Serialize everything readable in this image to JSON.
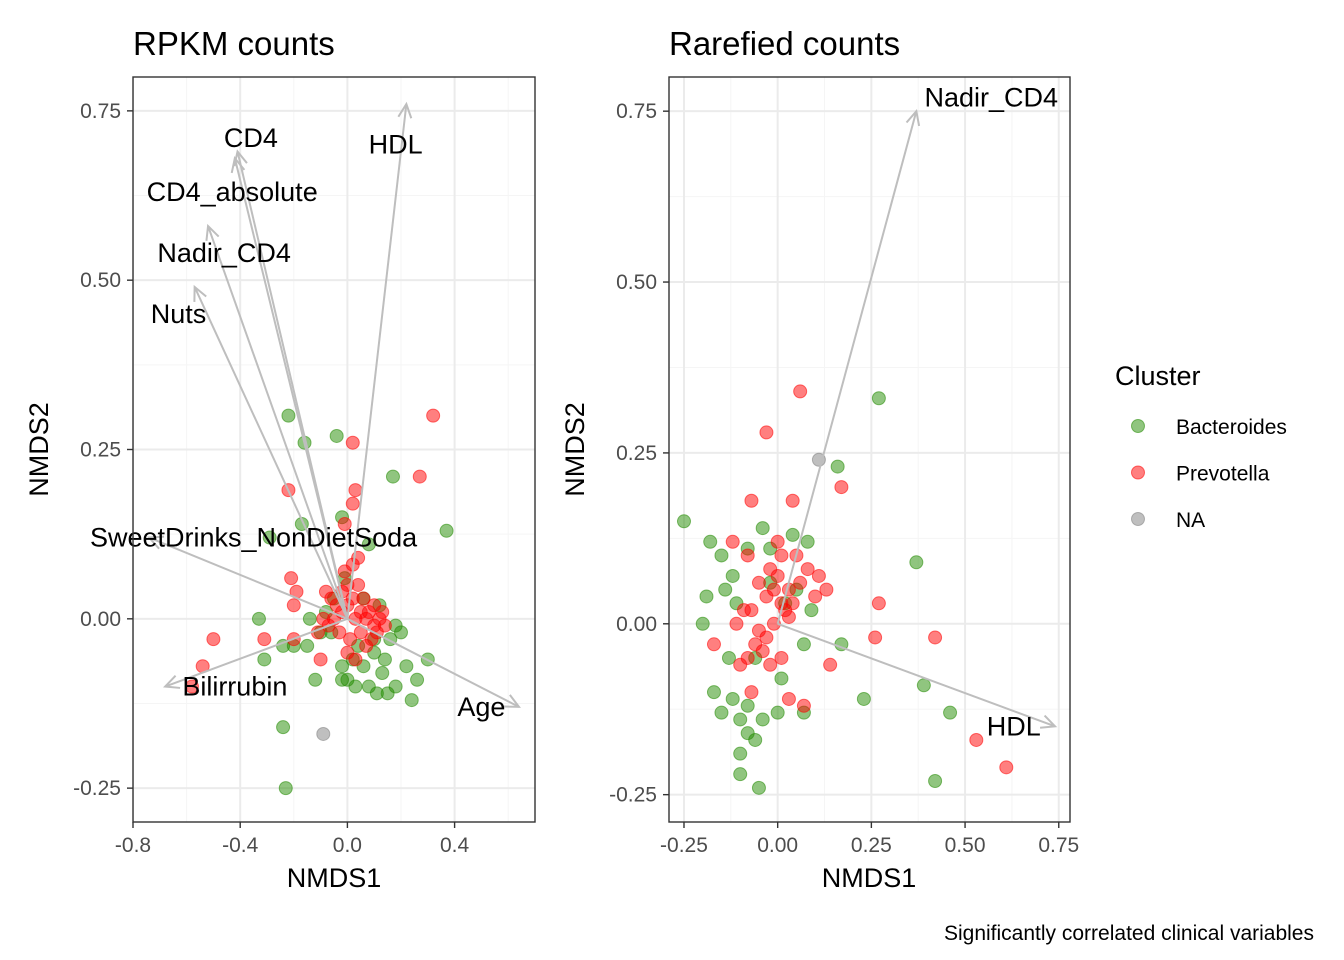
{
  "chart_data": [
    {
      "type": "scatter",
      "title": "RPKM counts",
      "xlabel": "NMDS1",
      "ylabel": "NMDS2",
      "xlim": [
        -0.8,
        0.7
      ],
      "ylim": [
        -0.3,
        0.8
      ],
      "xticks": [
        -0.8,
        -0.4,
        0.0,
        0.4
      ],
      "xtick_labels": [
        "-0.8",
        "-0.4",
        "0.0",
        "0.4"
      ],
      "yticks": [
        -0.25,
        0.0,
        0.25,
        0.5,
        0.75
      ],
      "ytick_labels": [
        "-0.25",
        "0.00",
        "0.25",
        "0.50",
        "0.75"
      ],
      "grid": true,
      "origin": [
        0,
        0
      ],
      "vectors": [
        {
          "label": "HDL",
          "x": 0.22,
          "y": 0.76,
          "label_x": 0.18,
          "label_y": 0.7
        },
        {
          "label": "CD4",
          "x": -0.41,
          "y": 0.69,
          "label_x": -0.36,
          "label_y": 0.71
        },
        {
          "label": "CD4_absolute",
          "x": -0.42,
          "y": 0.68,
          "label_x": -0.43,
          "label_y": 0.63
        },
        {
          "label": "Nadir_CD4",
          "x": -0.52,
          "y": 0.58,
          "label_x": -0.46,
          "label_y": 0.54
        },
        {
          "label": "Nuts",
          "x": -0.57,
          "y": 0.49,
          "label_x": -0.63,
          "label_y": 0.45
        },
        {
          "label": "SweetDrinks_NonDietSoda",
          "x": -0.74,
          "y": 0.12,
          "label_x": -0.35,
          "label_y": 0.12
        },
        {
          "label": "Bilirrubin",
          "x": -0.68,
          "y": -0.1,
          "label_x": -0.42,
          "label_y": -0.1
        },
        {
          "label": "Age",
          "x": 0.64,
          "y": -0.13,
          "label_x": 0.5,
          "label_y": -0.13
        }
      ],
      "series": [
        {
          "name": "Bacteroides",
          "points": [
            [
              -0.22,
              0.3
            ],
            [
              -0.16,
              0.26
            ],
            [
              -0.04,
              0.27
            ],
            [
              -0.17,
              0.14
            ],
            [
              -0.29,
              0.12
            ],
            [
              0.17,
              0.21
            ],
            [
              0.08,
              0.11
            ],
            [
              0.37,
              0.13
            ],
            [
              -0.02,
              0.15
            ],
            [
              -0.33,
              0.0
            ],
            [
              -0.31,
              -0.06
            ],
            [
              -0.24,
              -0.04
            ],
            [
              -0.2,
              -0.04
            ],
            [
              -0.15,
              -0.04
            ],
            [
              -0.1,
              -0.02
            ],
            [
              -0.12,
              -0.09
            ],
            [
              -0.24,
              -0.16
            ],
            [
              -0.23,
              -0.25
            ],
            [
              -0.06,
              -0.02
            ],
            [
              -0.02,
              -0.07
            ],
            [
              0.0,
              -0.09
            ],
            [
              0.03,
              -0.1
            ],
            [
              0.06,
              -0.07
            ],
            [
              0.08,
              -0.1
            ],
            [
              0.11,
              -0.11
            ],
            [
              0.13,
              -0.08
            ],
            [
              0.15,
              -0.11
            ],
            [
              0.18,
              -0.1
            ],
            [
              0.22,
              -0.07
            ],
            [
              0.26,
              -0.09
            ],
            [
              0.3,
              -0.06
            ],
            [
              0.2,
              -0.02
            ],
            [
              0.24,
              -0.12
            ],
            [
              0.14,
              -0.06
            ],
            [
              0.1,
              -0.05
            ],
            [
              -0.08,
              0.01
            ],
            [
              -0.05,
              0.03
            ],
            [
              0.04,
              -0.04
            ],
            [
              -0.14,
              0.0
            ],
            [
              -0.02,
              -0.09
            ],
            [
              0.1,
              -0.03
            ],
            [
              0.18,
              -0.01
            ],
            [
              0.12,
              0.02
            ],
            [
              0.06,
              0.03
            ],
            [
              0.02,
              -0.06
            ],
            [
              -0.01,
              0.06
            ],
            [
              0.16,
              -0.03
            ]
          ]
        },
        {
          "name": "Prevotella",
          "points": [
            [
              0.32,
              0.3
            ],
            [
              0.02,
              0.26
            ],
            [
              0.27,
              0.21
            ],
            [
              -0.22,
              0.19
            ],
            [
              0.03,
              0.19
            ],
            [
              0.02,
              0.17
            ],
            [
              -0.01,
              0.14
            ],
            [
              0.04,
              0.09
            ],
            [
              -0.21,
              0.06
            ],
            [
              -0.19,
              0.04
            ],
            [
              -0.2,
              0.02
            ],
            [
              -0.08,
              0.04
            ],
            [
              -0.06,
              0.03
            ],
            [
              -0.04,
              0.02
            ],
            [
              -0.02,
              0.04
            ],
            [
              0.0,
              0.02
            ],
            [
              0.02,
              0.03
            ],
            [
              0.04,
              0.05
            ],
            [
              0.06,
              0.03
            ],
            [
              0.08,
              0.01
            ],
            [
              0.1,
              0.02
            ],
            [
              0.12,
              0.0
            ],
            [
              0.14,
              -0.01
            ],
            [
              0.05,
              -0.02
            ],
            [
              0.03,
              0.0
            ],
            [
              0.01,
              -0.03
            ],
            [
              -0.03,
              -0.02
            ],
            [
              -0.05,
              0.0
            ],
            [
              -0.07,
              -0.01
            ],
            [
              -0.09,
              0.0
            ],
            [
              -0.11,
              -0.02
            ],
            [
              0.07,
              -0.04
            ],
            [
              0.09,
              -0.03
            ],
            [
              0.11,
              -0.02
            ],
            [
              -0.01,
              0.07
            ],
            [
              0.0,
              0.05
            ],
            [
              0.02,
              0.08
            ],
            [
              -0.5,
              -0.03
            ],
            [
              -0.54,
              -0.07
            ],
            [
              -0.58,
              -0.1
            ],
            [
              -0.31,
              -0.03
            ],
            [
              -0.2,
              -0.03
            ],
            [
              -0.1,
              -0.06
            ],
            [
              0.0,
              -0.05
            ],
            [
              0.03,
              -0.06
            ],
            [
              0.05,
              0.01
            ],
            [
              0.07,
              0.0
            ],
            [
              0.1,
              -0.01
            ],
            [
              0.13,
              0.01
            ],
            [
              -0.02,
              0.01
            ]
          ]
        },
        {
          "name": "NA",
          "points": [
            [
              -0.09,
              -0.17
            ]
          ]
        }
      ]
    },
    {
      "type": "scatter",
      "title": "Rarefied counts",
      "xlabel": "NMDS1",
      "ylabel": "NMDS2",
      "xlim": [
        -0.29,
        0.78
      ],
      "ylim": [
        -0.29,
        0.8
      ],
      "xticks": [
        -0.25,
        0.0,
        0.25,
        0.5,
        0.75
      ],
      "xtick_labels": [
        "-0.25",
        "0.00",
        "0.25",
        "0.50",
        "0.75"
      ],
      "yticks": [
        -0.25,
        0.0,
        0.25,
        0.5,
        0.75
      ],
      "ytick_labels": [
        "-0.25",
        "0.00",
        "0.25",
        "0.50",
        "0.75"
      ],
      "grid": true,
      "origin": [
        0,
        0
      ],
      "vectors": [
        {
          "label": "Nadir_CD4",
          "x": 0.37,
          "y": 0.75,
          "label_x": 0.57,
          "label_y": 0.77
        },
        {
          "label": "HDL",
          "x": 0.74,
          "y": -0.15,
          "label_x": 0.63,
          "label_y": -0.15
        }
      ],
      "series": [
        {
          "name": "Bacteroides",
          "points": [
            [
              0.27,
              0.33
            ],
            [
              0.16,
              0.23
            ],
            [
              -0.25,
              0.15
            ],
            [
              -0.18,
              0.12
            ],
            [
              -0.15,
              0.1
            ],
            [
              -0.12,
              0.07
            ],
            [
              -0.08,
              0.11
            ],
            [
              -0.04,
              0.14
            ],
            [
              -0.02,
              0.11
            ],
            [
              0.04,
              0.13
            ],
            [
              0.08,
              0.12
            ],
            [
              0.37,
              0.09
            ],
            [
              -0.19,
              0.04
            ],
            [
              -0.14,
              0.05
            ],
            [
              -0.11,
              0.03
            ],
            [
              -0.2,
              0.0
            ],
            [
              -0.17,
              -0.1
            ],
            [
              -0.15,
              -0.13
            ],
            [
              -0.12,
              -0.11
            ],
            [
              -0.1,
              -0.14
            ],
            [
              -0.08,
              -0.16
            ],
            [
              -0.06,
              -0.17
            ],
            [
              -0.04,
              -0.14
            ],
            [
              -0.1,
              -0.19
            ],
            [
              -0.1,
              -0.22
            ],
            [
              -0.05,
              -0.24
            ],
            [
              0.0,
              -0.13
            ],
            [
              0.07,
              -0.13
            ],
            [
              0.17,
              -0.03
            ],
            [
              0.23,
              -0.11
            ],
            [
              0.39,
              -0.09
            ],
            [
              0.46,
              -0.13
            ],
            [
              0.42,
              -0.23
            ],
            [
              0.07,
              -0.03
            ],
            [
              0.02,
              0.03
            ],
            [
              -0.02,
              0.06
            ],
            [
              0.09,
              0.02
            ],
            [
              -0.06,
              -0.05
            ],
            [
              0.05,
              0.05
            ],
            [
              -0.13,
              -0.05
            ],
            [
              -0.08,
              -0.12
            ],
            [
              0.01,
              -0.08
            ]
          ]
        },
        {
          "name": "Prevotella",
          "points": [
            [
              0.06,
              0.34
            ],
            [
              -0.03,
              0.28
            ],
            [
              -0.07,
              0.18
            ],
            [
              0.04,
              0.18
            ],
            [
              0.17,
              0.2
            ],
            [
              -0.12,
              0.12
            ],
            [
              -0.08,
              0.1
            ],
            [
              0.01,
              0.1
            ],
            [
              0.05,
              0.1
            ],
            [
              0.08,
              0.08
            ],
            [
              0.11,
              0.07
            ],
            [
              0.13,
              0.05
            ],
            [
              0.06,
              0.06
            ],
            [
              0.03,
              0.05
            ],
            [
              0.01,
              0.03
            ],
            [
              -0.03,
              0.04
            ],
            [
              -0.05,
              0.06
            ],
            [
              -0.07,
              0.02
            ],
            [
              -0.09,
              0.02
            ],
            [
              -0.11,
              0.0
            ],
            [
              -0.05,
              -0.01
            ],
            [
              -0.03,
              -0.02
            ],
            [
              -0.01,
              0.0
            ],
            [
              0.02,
              0.02
            ],
            [
              0.04,
              0.03
            ],
            [
              0.0,
              0.07
            ],
            [
              -0.02,
              0.08
            ],
            [
              -0.04,
              -0.04
            ],
            [
              -0.06,
              -0.03
            ],
            [
              -0.08,
              -0.05
            ],
            [
              -0.1,
              -0.06
            ],
            [
              -0.02,
              -0.06
            ],
            [
              0.01,
              -0.05
            ],
            [
              0.14,
              -0.06
            ],
            [
              0.27,
              0.03
            ],
            [
              0.26,
              -0.02
            ],
            [
              0.42,
              -0.02
            ],
            [
              0.53,
              -0.17
            ],
            [
              0.61,
              -0.21
            ],
            [
              -0.17,
              -0.03
            ],
            [
              0.03,
              -0.11
            ],
            [
              0.07,
              -0.12
            ],
            [
              -0.07,
              -0.1
            ],
            [
              0.0,
              0.12
            ],
            [
              0.1,
              0.04
            ],
            [
              -0.01,
              0.05
            ],
            [
              0.03,
              0.01
            ]
          ]
        },
        {
          "name": "NA",
          "points": [
            [
              0.11,
              0.24
            ]
          ]
        }
      ]
    }
  ],
  "legend": {
    "title": "Cluster",
    "position": "right",
    "items": [
      {
        "label": "Bacteroides",
        "color": "#228B00"
      },
      {
        "label": "Prevotella",
        "color": "#FF0000"
      },
      {
        "label": "NA",
        "color": "#808080"
      }
    ]
  },
  "caption": "Significantly correlated clinical variables",
  "colors": {
    "Bacteroides": "#228B00",
    "Prevotella": "#FF0000",
    "NA": "#808080",
    "vector": "#BEBEBE",
    "grid_major": "#EBEBEB",
    "grid_minor": "#F5F5F5",
    "panel_border": "#333333"
  }
}
